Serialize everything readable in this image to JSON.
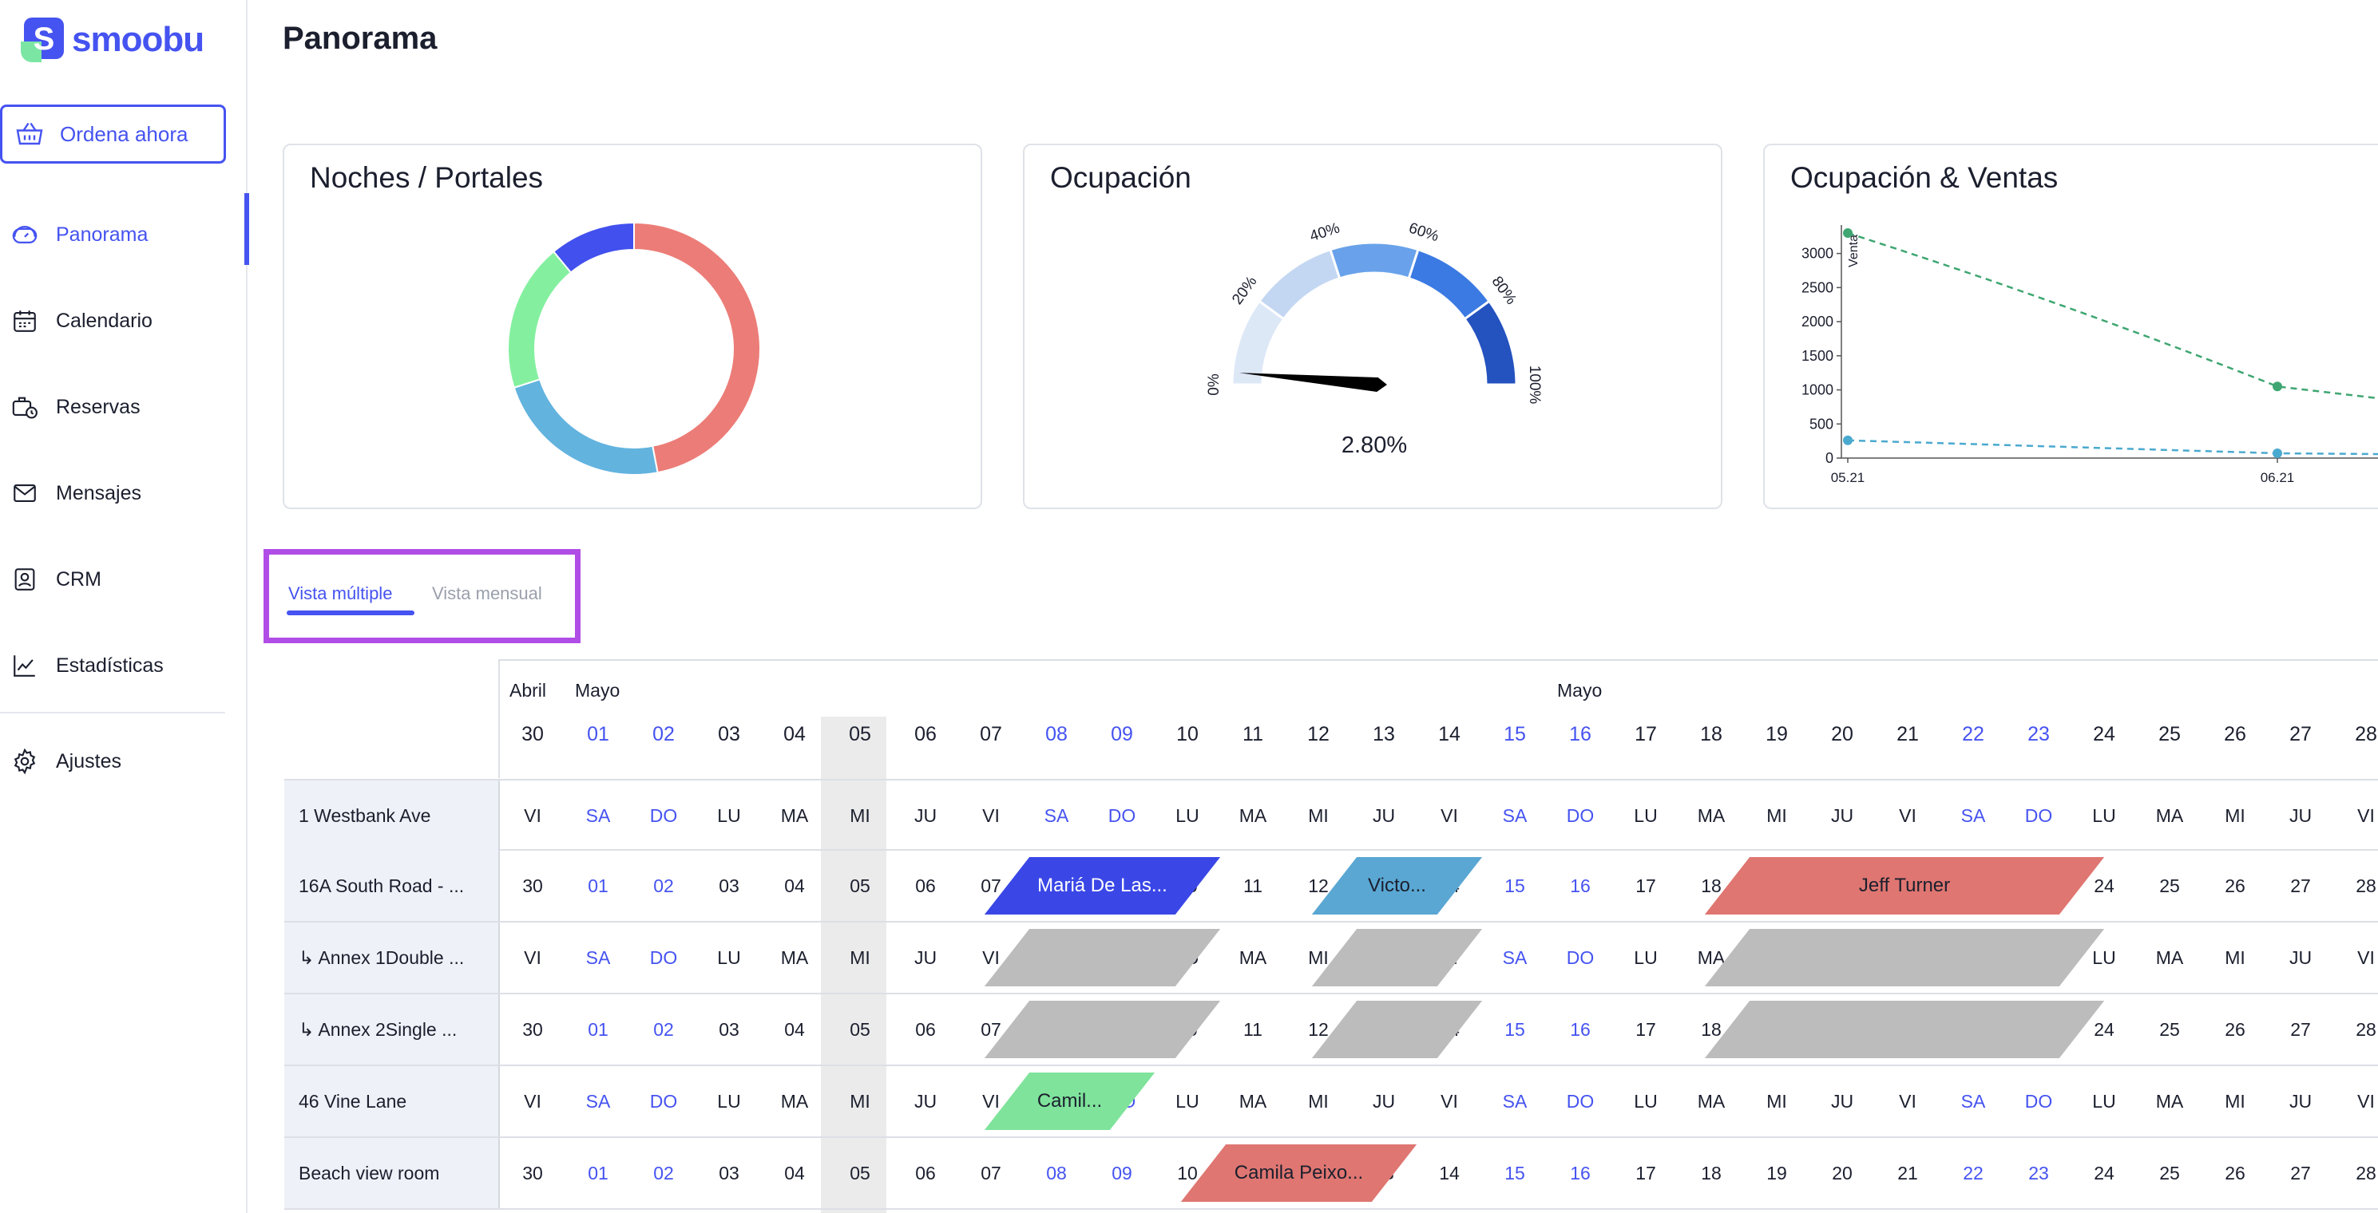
{
  "app": {
    "logo_text": "smoobu",
    "logo_letter": "S"
  },
  "sidebar": {
    "order_button": "Ordena ahora",
    "items": [
      {
        "label": "Panorama",
        "icon": "dashboard-icon",
        "active": true
      },
      {
        "label": "Calendario",
        "icon": "calendar-icon",
        "active": false
      },
      {
        "label": "Reservas",
        "icon": "bookings-icon",
        "active": false
      },
      {
        "label": "Mensajes",
        "icon": "mail-icon",
        "active": false
      },
      {
        "label": "CRM",
        "icon": "contact-icon",
        "active": false
      },
      {
        "label": "Estadísticas",
        "icon": "stats-icon",
        "active": false
      }
    ],
    "settings": {
      "label": "Ajustes",
      "icon": "gear-icon"
    }
  },
  "page": {
    "title": "Panorama"
  },
  "cards": {
    "portals": {
      "title": "Noches / Portales"
    },
    "occupancy": {
      "title": "Ocupación",
      "value": "2.80%",
      "value_fraction": 0.028
    },
    "sales": {
      "title": "Ocupación & Ventas"
    }
  },
  "colors": {
    "accent": "#4553f0",
    "booking_blue": "#3a47e6",
    "booking_teal": "#5aa7d3",
    "booking_red": "#df7671",
    "booking_green": "#7fe39b",
    "booking_grey": "#bcbcbc",
    "weekend_text": "#4553f0",
    "highlight_box": "#b04de6"
  },
  "chart_data": [
    {
      "type": "pie",
      "title": "Noches / Portales",
      "donut": true,
      "slices": [
        {
          "value": 47,
          "color": "#ec7c77"
        },
        {
          "value": 23,
          "color": "#63b3df"
        },
        {
          "value": 19,
          "color": "#84f09f"
        },
        {
          "value": 11,
          "color": "#4250ee"
        }
      ]
    },
    {
      "type": "gauge",
      "title": "Ocupación",
      "tick_labels": [
        "0%",
        "20%",
        "40%",
        "60%",
        "80%",
        "100%"
      ],
      "band_colors": [
        "#dde8f7",
        "#c4d7f2",
        "#69a2ea",
        "#3b7ae2",
        "#2452bf"
      ],
      "value": 2.8,
      "value_label": "2.80%"
    },
    {
      "type": "line",
      "title": "Ocupación & Ventas",
      "ylabel": "Venta",
      "x": [
        "05.21",
        "06.21"
      ],
      "yticks": [
        0,
        500,
        1000,
        1500,
        2000,
        2500,
        3000
      ],
      "ylim": [
        0,
        3300
      ],
      "series": [
        {
          "values": [
            3300,
            1050
          ],
          "color": "#3fa672",
          "dashed": true
        },
        {
          "values": [
            260,
            70
          ],
          "color": "#4aa9cf",
          "dashed": true
        }
      ]
    }
  ],
  "tabs": [
    {
      "label": "Vista múltiple",
      "active": true
    },
    {
      "label": "Vista mensual",
      "active": false
    }
  ],
  "calendar": {
    "months": [
      {
        "label": "Abril",
        "col": 0
      },
      {
        "label": "Mayo",
        "col": 1
      },
      {
        "label": "Mayo",
        "col": 16
      }
    ],
    "days": [
      {
        "num": "30",
        "wd": "VI",
        "wk": false
      },
      {
        "num": "01",
        "wd": "SA",
        "wk": true
      },
      {
        "num": "02",
        "wd": "DO",
        "wk": true
      },
      {
        "num": "03",
        "wd": "LU",
        "wk": false
      },
      {
        "num": "04",
        "wd": "MA",
        "wk": false
      },
      {
        "num": "05",
        "wd": "MI",
        "wk": false
      },
      {
        "num": "06",
        "wd": "JU",
        "wk": false
      },
      {
        "num": "07",
        "wd": "VI",
        "wk": false
      },
      {
        "num": "08",
        "wd": "SA",
        "wk": true
      },
      {
        "num": "09",
        "wd": "DO",
        "wk": true
      },
      {
        "num": "10",
        "wd": "LU",
        "wk": false
      },
      {
        "num": "11",
        "wd": "MA",
        "wk": false
      },
      {
        "num": "12",
        "wd": "MI",
        "wk": false
      },
      {
        "num": "13",
        "wd": "JU",
        "wk": false
      },
      {
        "num": "14",
        "wd": "VI",
        "wk": false
      },
      {
        "num": "15",
        "wd": "SA",
        "wk": true
      },
      {
        "num": "16",
        "wd": "DO",
        "wk": true
      },
      {
        "num": "17",
        "wd": "LU",
        "wk": false
      },
      {
        "num": "18",
        "wd": "MA",
        "wk": false
      },
      {
        "num": "19",
        "wd": "MI",
        "wk": false
      },
      {
        "num": "20",
        "wd": "JU",
        "wk": false
      },
      {
        "num": "21",
        "wd": "VI",
        "wk": false
      },
      {
        "num": "22",
        "wd": "SA",
        "wk": true
      },
      {
        "num": "23",
        "wd": "DO",
        "wk": true
      },
      {
        "num": "24",
        "wd": "LU",
        "wk": false
      },
      {
        "num": "25",
        "wd": "MA",
        "wk": false
      },
      {
        "num": "26",
        "wd": "MI",
        "wk": false
      },
      {
        "num": "27",
        "wd": "JU",
        "wk": false
      },
      {
        "num": "28",
        "wd": "VI",
        "wk": false
      }
    ],
    "rows": [
      {
        "label": "1 Westbank Ave",
        "show": "wd"
      },
      {
        "label": "16A South Road - ...",
        "show": "num"
      },
      {
        "label": "↳ Annex 1Double ...",
        "show": "wd"
      },
      {
        "label": "↳ Annex 2Single ...",
        "show": "num"
      },
      {
        "label": "46 Vine Lane",
        "show": "wd"
      },
      {
        "label": "Beach view room",
        "show": "num"
      }
    ],
    "bookings": [
      {
        "row": 0,
        "start": 28.9,
        "end": 29.5,
        "color": "#5aa7d3",
        "label": ""
      },
      {
        "row": 1,
        "start": 7.5,
        "end": 10.0,
        "color": "#3a47e6",
        "label": "Mariá De Las...",
        "light": true
      },
      {
        "row": 1,
        "start": 12.5,
        "end": 14.0,
        "color": "#5aa7d3",
        "label": "Victo..."
      },
      {
        "row": 1,
        "start": 18.5,
        "end": 23.5,
        "color": "#df7671",
        "label": "Jeff Turner"
      },
      {
        "row": 2,
        "start": 7.5,
        "end": 10.0,
        "color": "#bcbcbc",
        "label": ""
      },
      {
        "row": 2,
        "start": 12.5,
        "end": 14.0,
        "color": "#bcbcbc",
        "label": ""
      },
      {
        "row": 2,
        "start": 18.5,
        "end": 23.5,
        "color": "#bcbcbc",
        "label": ""
      },
      {
        "row": 3,
        "start": 7.5,
        "end": 10.0,
        "color": "#bcbcbc",
        "label": ""
      },
      {
        "row": 3,
        "start": 12.5,
        "end": 14.0,
        "color": "#bcbcbc",
        "label": ""
      },
      {
        "row": 3,
        "start": 18.5,
        "end": 23.5,
        "color": "#bcbcbc",
        "label": ""
      },
      {
        "row": 4,
        "start": 7.5,
        "end": 9.0,
        "color": "#7fe39b",
        "label": "Camil..."
      },
      {
        "row": 5,
        "start": 10.5,
        "end": 13.0,
        "color": "#df7671",
        "label": "Camila Peixo..."
      }
    ]
  }
}
